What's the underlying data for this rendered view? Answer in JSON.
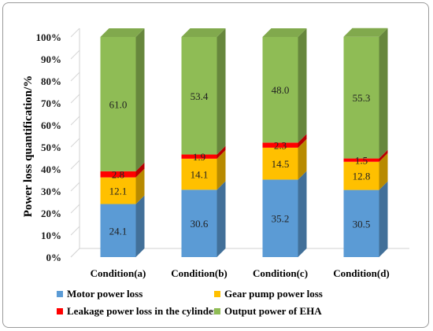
{
  "chart_data": {
    "type": "bar",
    "stacked": true,
    "normalized_percent": true,
    "style": "3d-column",
    "categories": [
      "Condition(a)",
      "Condition(b)",
      "Condition(c)",
      "Condition(d)"
    ],
    "ylabel": "Power loss quantification/%",
    "xlabel": "",
    "ylim": [
      0,
      100
    ],
    "yticks": [
      "0%",
      "10%",
      "20%",
      "30%",
      "40%",
      "50%",
      "60%",
      "70%",
      "80%",
      "90%",
      "100%"
    ],
    "grid": false,
    "legend_position": "bottom",
    "series": [
      {
        "name": "Motor power loss",
        "values": [
          24.1,
          30.6,
          35.2,
          30.5
        ],
        "labels": [
          "24.1",
          "30.6",
          "35.2",
          "30.5"
        ],
        "color": "#5b9bd5"
      },
      {
        "name": "Gear pump power loss",
        "values": [
          12.1,
          14.1,
          14.5,
          12.8
        ],
        "labels": [
          "12.1",
          "14.1",
          "14.5",
          "12.8"
        ],
        "color": "#ffc000"
      },
      {
        "name": "Leakage power loss in the cylinder",
        "values": [
          2.8,
          1.9,
          2.3,
          1.5
        ],
        "labels": [
          "2.8",
          "1.9",
          "2.3",
          "1.5"
        ],
        "color": "#ff0000"
      },
      {
        "name": "Output power of EHA",
        "values": [
          61.0,
          53.4,
          48.0,
          55.3
        ],
        "labels": [
          "61.0",
          "53.4",
          "48.0",
          "55.3"
        ],
        "color": "#8fbc55"
      }
    ]
  }
}
